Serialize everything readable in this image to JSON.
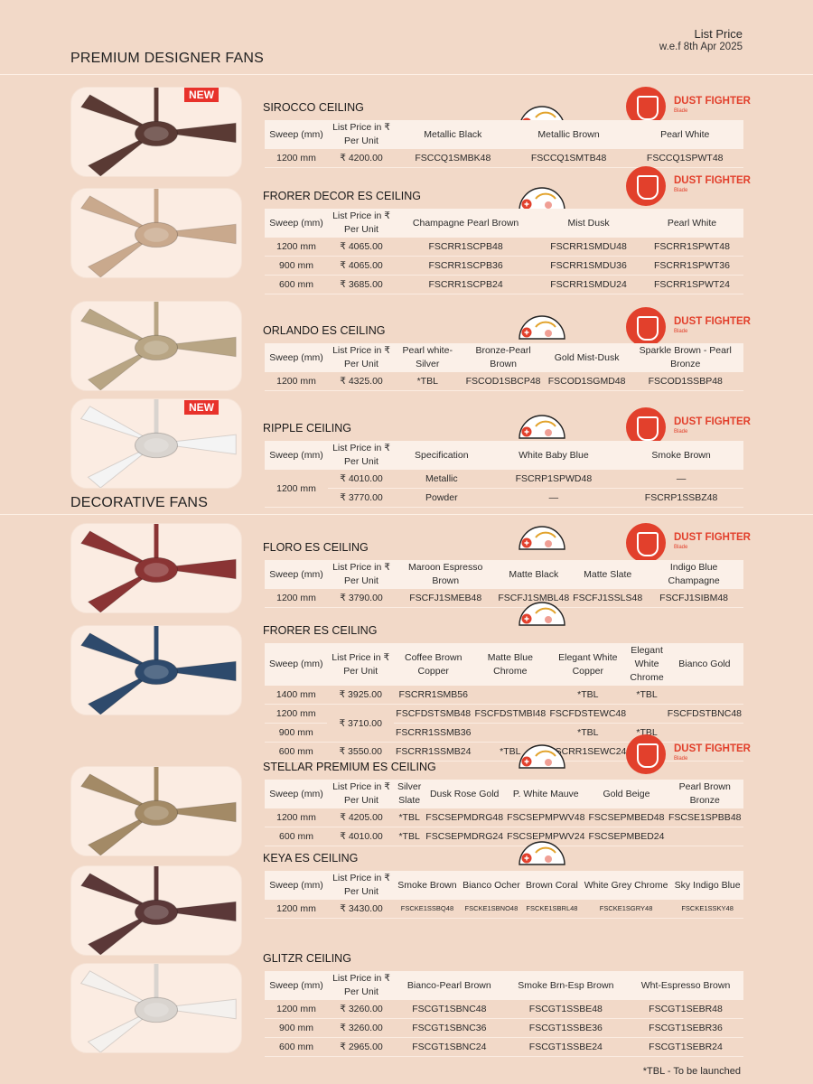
{
  "header": {
    "list_price": "List Price",
    "wef": "w.e.f 8th Apr 2025"
  },
  "sections": {
    "premium": "PREMIUM DESIGNER FANS",
    "decorative": "DECORATIVE FANS"
  },
  "badges": {
    "new": "NEW",
    "dust_fighter": "DUST FIGHTER",
    "dust_sub": "Blade"
  },
  "colors": {
    "accent": "#e2402c",
    "background": "#f2d9c8",
    "table_header": "#fbf0e8"
  },
  "common": {
    "sweep": "Sweep (mm)",
    "list_price": "List Price in ₹ Per Unit"
  },
  "products": {
    "sirocco": {
      "name_main": "SIROCCO",
      "name_suffix": "CEILING",
      "cols": [
        "Metallic Black",
        "Metallic Brown",
        "Pearl White"
      ],
      "rows": [
        [
          "1200 mm",
          "₹ 4200.00",
          "FSCCQ1SMBK48",
          "FSCCQ1SMTB48",
          "FSCCQ1SPWT48"
        ]
      ]
    },
    "frorer_decor": {
      "name_main": "FRORER DECOR ES",
      "name_suffix": "CEILING",
      "cols": [
        "Champagne Pearl Brown",
        "Mist Dusk",
        "Pearl White"
      ],
      "rows": [
        [
          "1200 mm",
          "₹ 4065.00",
          "FSCRR1SCPB48",
          "FSCRR1SMDU48",
          "FSCRR1SPWT48"
        ],
        [
          "900 mm",
          "₹ 4065.00",
          "FSCRR1SCPB36",
          "FSCRR1SMDU36",
          "FSCRR1SPWT36"
        ],
        [
          "600 mm",
          "₹ 3685.00",
          "FSCRR1SCPB24",
          "FSCRR1SMDU24",
          "FSCRR1SPWT24"
        ]
      ]
    },
    "orlando": {
      "name_main": "ORLANDO ES",
      "name_suffix": "CEILING",
      "cols": [
        "Pearl white-Silver",
        "Bronze-Pearl Brown",
        "Gold Mist-Dusk",
        "Sparkle Brown - Pearl Bronze"
      ],
      "rows": [
        [
          "1200 mm",
          "₹ 4325.00",
          "*TBL",
          "FSCOD1SBCP48",
          "FSCOD1SGMD48",
          "FSCOD1SSBP48"
        ]
      ]
    },
    "ripple": {
      "name_main": "RIPPLE",
      "name_suffix": "CEILING",
      "cols": [
        "Specification",
        "White Baby Blue",
        "Smoke Brown"
      ],
      "sweep": "1200 mm",
      "rows": [
        [
          "₹ 4010.00",
          "Metallic",
          "FSCRP1SPWD48",
          "—"
        ],
        [
          "₹ 3770.00",
          "Powder",
          "—",
          "FSCRP1SSBZ48"
        ]
      ]
    },
    "floro": {
      "name_main": "FLORO ES",
      "name_suffix": "CEILING",
      "cols": [
        "Maroon Espresso Brown",
        "Matte Black",
        "Matte Slate",
        "Indigo Blue Champagne"
      ],
      "rows": [
        [
          "1200 mm",
          "₹ 3790.00",
          "FSCFJ1SMEB48",
          "FSCFJ1SMBL48",
          "FSCFJ1SSLS48",
          "FSCFJ1SIBM48"
        ]
      ]
    },
    "frorer": {
      "name_main": "FRORER ES",
      "name_suffix": "CEILING",
      "cols": [
        "Coffee Brown Copper",
        "Matte Blue Chrome",
        "Elegant White Copper",
        "Elegant White Chrome",
        "Bianco Gold"
      ],
      "rows": [
        [
          "1400 mm",
          "₹ 3925.00",
          "FSCRR1SMB56",
          "",
          "*TBL",
          "*TBL",
          ""
        ],
        [
          "1200 mm",
          "",
          "FSCFDSTSMB48",
          "FSCFDSTMBI48",
          "FSCFDSTEWC48",
          "",
          "FSCFDSTBNC48"
        ],
        [
          "900 mm",
          "",
          "FSCRR1SSMB36",
          "",
          "*TBL",
          "*TBL",
          ""
        ],
        [
          "600 mm",
          "₹ 3550.00",
          "FSCRR1SSMB24",
          "*TBL",
          "FSCRR1SEWC24",
          "*TBL",
          ""
        ]
      ],
      "merged_price": "₹ 3710.00"
    },
    "stellar": {
      "name_main": "STELLAR PREMIUM ES",
      "name_suffix": "CEILING",
      "cols": [
        "Silver Slate",
        "Dusk Rose Gold",
        "P. White Mauve",
        "Gold Beige",
        "Pearl Brown Bronze"
      ],
      "rows": [
        [
          "1200 mm",
          "₹ 4205.00",
          "*TBL",
          "FSCSEPMDRG48",
          "FSCSEPMPWV48",
          "FSCSEPMBED48",
          "FSCSE1SPBB48"
        ],
        [
          "600 mm",
          "₹ 4010.00",
          "*TBL",
          "FSCSEPMDRG24",
          "FSCSEPMPWV24",
          "FSCSEPMBED24",
          ""
        ]
      ]
    },
    "keya": {
      "name_main": "KEYA ES",
      "name_suffix": "CEILING",
      "cols": [
        "Smoke Brown",
        "Bianco Ocher",
        "Brown Coral",
        "White Grey Chrome",
        "Sky Indigo Blue"
      ],
      "rows": [
        [
          "1200 mm",
          "₹ 3430.00",
          "FSCKE1SSBQ48",
          "FSCKE1SBNO48",
          "FSCKE1SBRL48",
          "FSCKE1SGRY48",
          "FSCKE1SSKY48"
        ]
      ]
    },
    "glitzr": {
      "name_main": "GLITZR",
      "name_suffix": "CEILING",
      "cols": [
        "Bianco-Pearl Brown",
        "Smoke Brn-Esp Brown",
        "Wht-Espresso Brown"
      ],
      "rows": [
        [
          "1200 mm",
          "₹ 3260.00",
          "FSCGT1SBNC48",
          "FSCGT1SSBE48",
          "FSCGT1SEBR48"
        ],
        [
          "900 mm",
          "₹ 3260.00",
          "FSCGT1SBNC36",
          "FSCGT1SSBE36",
          "FSCGT1SEBR36"
        ],
        [
          "600 mm",
          "₹ 2965.00",
          "FSCGT1SBNC24",
          "FSCGT1SSBE24",
          "FSCGT1SEBR24"
        ]
      ]
    }
  },
  "fan_colors": {
    "sirocco": "#5a3a34",
    "frorer_decor": "#c9a98d",
    "orlando": "#b8a584",
    "ripple": "#f4f4f4",
    "floro": "#8a3434",
    "frorer": "#2e4a6c",
    "stellar": "#a38a66",
    "keya": "#5b3838",
    "glitzr": "#f4f1ee"
  },
  "footnote": "*TBL - To be launched"
}
